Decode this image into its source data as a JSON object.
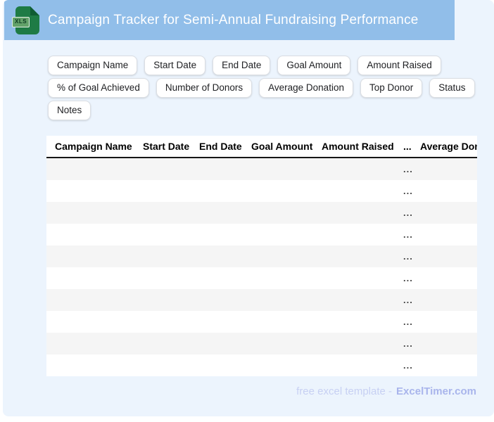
{
  "window": {
    "title": "Campaign Tracker for Semi-Annual Fundraising Performance",
    "file_type_badge": "XLS"
  },
  "chips": [
    "Campaign Name",
    "Start Date",
    "End Date",
    "Goal Amount",
    "Amount Raised",
    "% of Goal Achieved",
    "Number of Donors",
    "Average Donation",
    "Top Donor",
    "Status",
    "Notes"
  ],
  "table": {
    "columns": [
      "Campaign Name",
      "Start Date",
      "End Date",
      "Goal Amount",
      "Amount Raised",
      "...",
      "Average Donation"
    ],
    "rows": [
      {
        "collapsed": "..."
      },
      {
        "collapsed": "..."
      },
      {
        "collapsed": "..."
      },
      {
        "collapsed": "..."
      },
      {
        "collapsed": "..."
      },
      {
        "collapsed": "..."
      },
      {
        "collapsed": "..."
      },
      {
        "collapsed": "..."
      },
      {
        "collapsed": "..."
      },
      {
        "collapsed": "..."
      }
    ]
  },
  "footer": {
    "label": "free excel template -",
    "brand": "ExcelTimer.com"
  },
  "colors": {
    "header_bar": "#91BEE9",
    "card_bg": "#ECF4FD",
    "icon_green": "#1E7B45",
    "row_alt": "#F5F5F5",
    "footer_label": "#C7D0F3",
    "footer_brand": "#A9B5EC"
  }
}
